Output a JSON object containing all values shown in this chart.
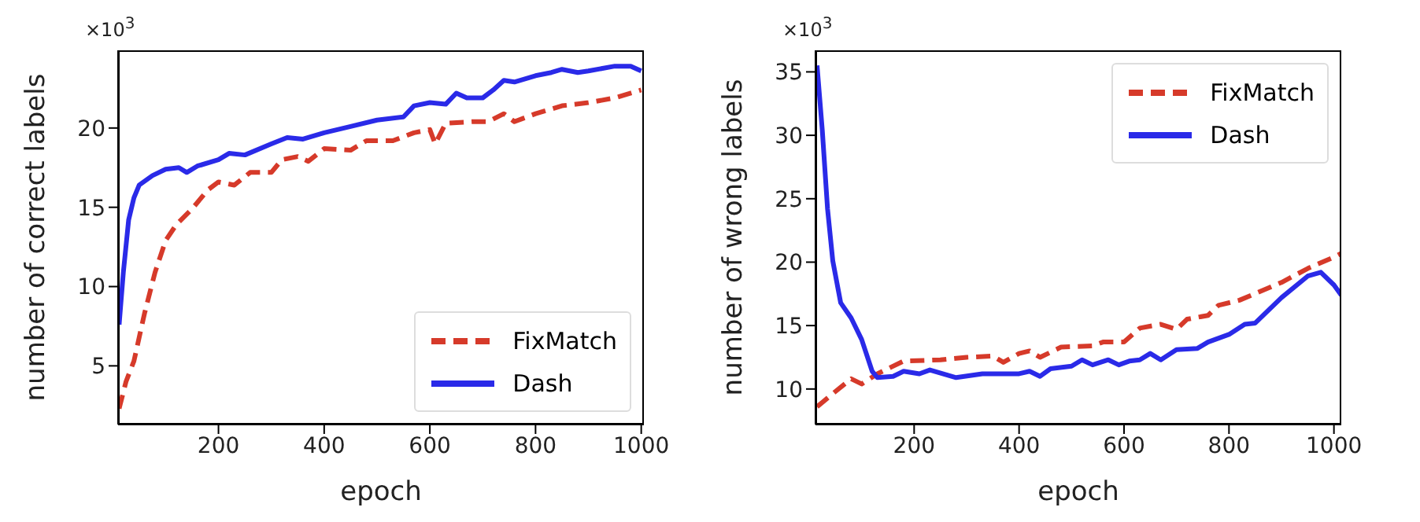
{
  "chart_data": [
    {
      "type": "line",
      "xlabel": "epoch",
      "ylabel": "number of correct labels",
      "annotations": [
        "×10$^{3}$"
      ],
      "xlim": [
        10,
        1005
      ],
      "ylim": [
        1.3,
        24.9
      ],
      "xticks": [
        200,
        400,
        600,
        800,
        1000
      ],
      "yticks": [
        5,
        10,
        15,
        20
      ],
      "grid": false,
      "legend": "bottom right",
      "series": [
        {
          "name": "FixMatch",
          "color": "#d63a2a",
          "line_style": "dashed",
          "x": [
            12,
            25,
            40,
            60,
            80,
            100,
            120,
            150,
            180,
            200,
            230,
            260,
            300,
            320,
            350,
            370,
            400,
            450,
            480,
            530,
            570,
            600,
            610,
            630,
            680,
            710,
            740,
            760,
            800,
            850,
            900,
            950,
            1000
          ],
          "values": [
            2.3,
            4.0,
            5.3,
            8.3,
            10.9,
            12.9,
            13.9,
            14.9,
            16.1,
            16.6,
            16.4,
            17.2,
            17.2,
            18.0,
            18.2,
            17.9,
            18.7,
            18.6,
            19.2,
            19.2,
            19.7,
            19.9,
            19.0,
            20.3,
            20.4,
            20.4,
            20.9,
            20.4,
            20.9,
            21.4,
            21.6,
            21.9,
            22.4
          ]
        },
        {
          "name": "Dash",
          "color": "#2a2ae8",
          "line_style": "solid",
          "x": [
            12,
            20,
            30,
            40,
            50,
            75,
            100,
            125,
            140,
            160,
            200,
            220,
            250,
            300,
            330,
            360,
            400,
            450,
            500,
            550,
            570,
            600,
            630,
            650,
            670,
            700,
            720,
            740,
            760,
            800,
            830,
            850,
            880,
            900,
            950,
            980,
            1000
          ],
          "values": [
            7.6,
            10.9,
            14.2,
            15.6,
            16.4,
            17.0,
            17.4,
            17.5,
            17.2,
            17.6,
            18.0,
            18.4,
            18.3,
            19.0,
            19.4,
            19.3,
            19.7,
            20.1,
            20.5,
            20.7,
            21.4,
            21.6,
            21.5,
            22.2,
            21.9,
            21.9,
            22.4,
            23.0,
            22.9,
            23.3,
            23.5,
            23.7,
            23.5,
            23.6,
            23.9,
            23.9,
            23.6
          ]
        }
      ]
    },
    {
      "type": "line",
      "xlabel": "epoch",
      "ylabel": "number of wrong labels",
      "annotations": [
        "×10$^{3}$"
      ],
      "xlim": [
        12,
        1014
      ],
      "ylim": [
        7.2,
        36.7
      ],
      "xticks": [
        200,
        400,
        600,
        800,
        1000
      ],
      "yticks": [
        10,
        15,
        20,
        25,
        30,
        35
      ],
      "grid": false,
      "legend": "top right",
      "series": [
        {
          "name": "FixMatch",
          "color": "#d63a2a",
          "line_style": "dashed",
          "x": [
            15,
            50,
            80,
            100,
            130,
            180,
            250,
            300,
            350,
            370,
            400,
            420,
            440,
            480,
            540,
            560,
            600,
            630,
            670,
            700,
            720,
            760,
            780,
            820,
            900,
            950,
            1000,
            1014
          ],
          "values": [
            8.6,
            9.8,
            10.8,
            10.4,
            11.2,
            12.2,
            12.3,
            12.5,
            12.6,
            12.1,
            12.8,
            13.0,
            12.5,
            13.3,
            13.4,
            13.7,
            13.7,
            14.8,
            15.1,
            14.7,
            15.5,
            15.8,
            16.6,
            17.0,
            18.4,
            19.5,
            20.4,
            20.7
          ]
        },
        {
          "name": "Dash",
          "color": "#2a2ae8",
          "line_style": "solid",
          "x": [
            15,
            25,
            35,
            45,
            60,
            80,
            100,
            120,
            130,
            160,
            180,
            210,
            230,
            280,
            330,
            400,
            420,
            440,
            460,
            500,
            520,
            540,
            570,
            590,
            610,
            630,
            650,
            670,
            700,
            740,
            760,
            800,
            830,
            850,
            900,
            950,
            975,
            1000,
            1014
          ],
          "values": [
            35.5,
            30.4,
            24.2,
            20.1,
            16.8,
            15.6,
            13.9,
            11.4,
            10.9,
            11.0,
            11.4,
            11.2,
            11.5,
            10.9,
            11.2,
            11.2,
            11.4,
            11.0,
            11.6,
            11.8,
            12.3,
            11.9,
            12.3,
            11.9,
            12.2,
            12.3,
            12.8,
            12.3,
            13.1,
            13.2,
            13.7,
            14.3,
            15.1,
            15.2,
            17.2,
            18.9,
            19.2,
            18.2,
            17.4
          ]
        }
      ]
    }
  ]
}
